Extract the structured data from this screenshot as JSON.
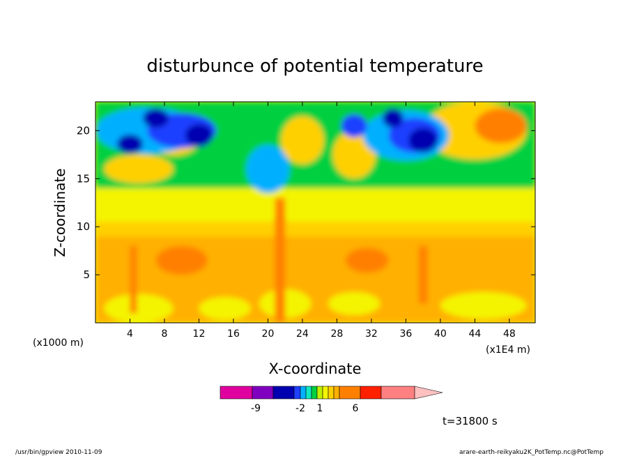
{
  "chart_data": {
    "type": "heatmap",
    "title": "disturbunce of potential temperature",
    "xlabel": "X-coordinate",
    "ylabel": "Z-coordinate",
    "x_unit_left": "(x1000 m)",
    "x_unit_right": "(x1E4 m)",
    "xlim": [
      0,
      51
    ],
    "ylim": [
      0,
      23
    ],
    "x_ticks": [
      4,
      8,
      12,
      16,
      20,
      24,
      28,
      32,
      36,
      40,
      44,
      48
    ],
    "y_ticks": [
      5,
      10,
      15,
      20
    ],
    "colorbar": {
      "colors": [
        "#e000a0",
        "#8000c0",
        "#0000b0",
        "#1f40ff",
        "#00b0ff",
        "#10e8c0",
        "#00d040",
        "#c0f000",
        "#f4f400",
        "#ffd000",
        "#ffb000",
        "#ff8000",
        "#ff2000",
        "#ff8080",
        "#ffc0c0"
      ],
      "tick_labels": [
        "-9",
        "-2",
        "1",
        "6"
      ]
    },
    "time_label": "t=31800 s",
    "footer_left": "/usr/bin/gpview  2010-11-09",
    "footer_right": "arare-earth-reikyaku2K_PotTemp.nc@PotTemp"
  }
}
